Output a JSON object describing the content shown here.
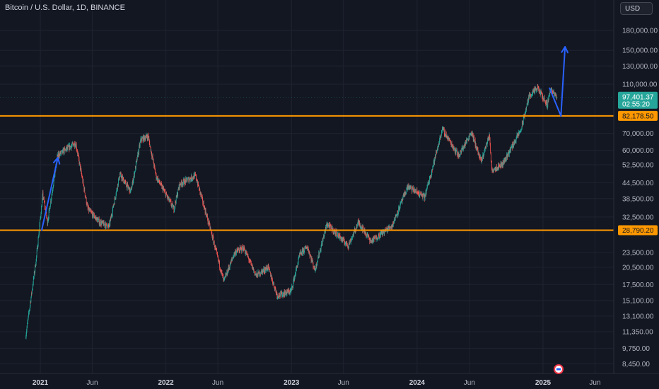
{
  "header": {
    "symbol_title": "Bitcoin / U.S. Dollar, 1D, BINANCE",
    "currency": "USD"
  },
  "colors": {
    "background": "#131722",
    "up": "#26a69a",
    "down": "#ef5350",
    "level_line": "#ff9800",
    "arrow": "#2962ff",
    "price_badge": "#26a69a"
  },
  "chart_data": {
    "type": "candlestick",
    "scale": "log",
    "y_ticks": [
      "180,000.00",
      "150,000.00",
      "130,000.00",
      "110,000.00",
      "70,000.00",
      "60,000.00",
      "52,500.00",
      "44,500.00",
      "38,500.00",
      "32,500.00",
      "23,500.00",
      "20,500.00",
      "17,500.00",
      "15,100.00",
      "13,100.00",
      "11,350.00",
      "9,750.00",
      "8,450.00"
    ],
    "x_ticks": [
      {
        "label": "2021",
        "year": true
      },
      {
        "label": "Jun",
        "year": false
      },
      {
        "label": "2022",
        "year": true
      },
      {
        "label": "Jun",
        "year": false
      },
      {
        "label": "2023",
        "year": true
      },
      {
        "label": "Jun",
        "year": false
      },
      {
        "label": "2024",
        "year": true
      },
      {
        "label": "Jun",
        "year": false
      },
      {
        "label": "2025",
        "year": true
      },
      {
        "label": "Jun",
        "year": false
      }
    ],
    "levels": [
      {
        "label": "82,178.50",
        "value": 82178.5
      },
      {
        "label": "28,790.20",
        "value": 28790.2
      }
    ],
    "current_price": {
      "label": "97,401.37",
      "countdown": "02:55:20",
      "value": 97401.37
    },
    "price_path": [
      [
        "2020-11-20",
        11000
      ],
      [
        "2020-12-20",
        22000
      ],
      [
        "2021-01-08",
        40000
      ],
      [
        "2021-01-22",
        31000
      ],
      [
        "2021-02-20",
        57000
      ],
      [
        "2021-03-13",
        60000
      ],
      [
        "2021-04-14",
        64000
      ],
      [
        "2021-05-19",
        35000
      ],
      [
        "2021-06-22",
        31000
      ],
      [
        "2021-07-20",
        29800
      ],
      [
        "2021-08-20",
        48000
      ],
      [
        "2021-09-21",
        41000
      ],
      [
        "2021-10-20",
        66000
      ],
      [
        "2021-11-10",
        68500
      ],
      [
        "2021-12-04",
        47000
      ],
      [
        "2022-01-24",
        35000
      ],
      [
        "2022-02-10",
        44000
      ],
      [
        "2022-03-28",
        47500
      ],
      [
        "2022-05-12",
        28500
      ],
      [
        "2022-06-18",
        18000
      ],
      [
        "2022-07-20",
        23500
      ],
      [
        "2022-08-15",
        24500
      ],
      [
        "2022-09-20",
        19000
      ],
      [
        "2022-10-25",
        20500
      ],
      [
        "2022-11-21",
        15800
      ],
      [
        "2022-12-31",
        16500
      ],
      [
        "2023-01-25",
        23000
      ],
      [
        "2023-02-16",
        24800
      ],
      [
        "2023-03-10",
        20000
      ],
      [
        "2023-04-14",
        30500
      ],
      [
        "2023-06-15",
        25000
      ],
      [
        "2023-07-15",
        31000
      ],
      [
        "2023-08-20",
        26000
      ],
      [
        "2023-10-20",
        30000
      ],
      [
        "2023-12-05",
        43000
      ],
      [
        "2024-01-23",
        39000
      ],
      [
        "2024-02-28",
        60000
      ],
      [
        "2024-03-14",
        73000
      ],
      [
        "2024-05-01",
        57000
      ],
      [
        "2024-06-07",
        71000
      ],
      [
        "2024-07-05",
        54000
      ],
      [
        "2024-07-29",
        69000
      ],
      [
        "2024-08-05",
        50000
      ],
      [
        "2024-09-06",
        53000
      ],
      [
        "2024-10-29",
        72500
      ],
      [
        "2024-11-22",
        99000
      ],
      [
        "2024-12-17",
        106000
      ],
      [
        "2025-01-13",
        91000
      ],
      [
        "2025-01-22",
        105000
      ],
      [
        "2025-02-10",
        97400
      ]
    ],
    "annotation_arrows": [
      {
        "from": [
          "2021-01-05",
          28800
        ],
        "to": [
          "2021-02-21",
          56000
        ]
      },
      {
        "from": [
          "2025-01-20",
          106000
        ],
        "to": [
          "2025-02-22",
          82178.5
        ]
      },
      {
        "from": [
          "2025-02-22",
          82178.5
        ],
        "to": [
          "2025-03-06",
          155000
        ]
      }
    ]
  }
}
